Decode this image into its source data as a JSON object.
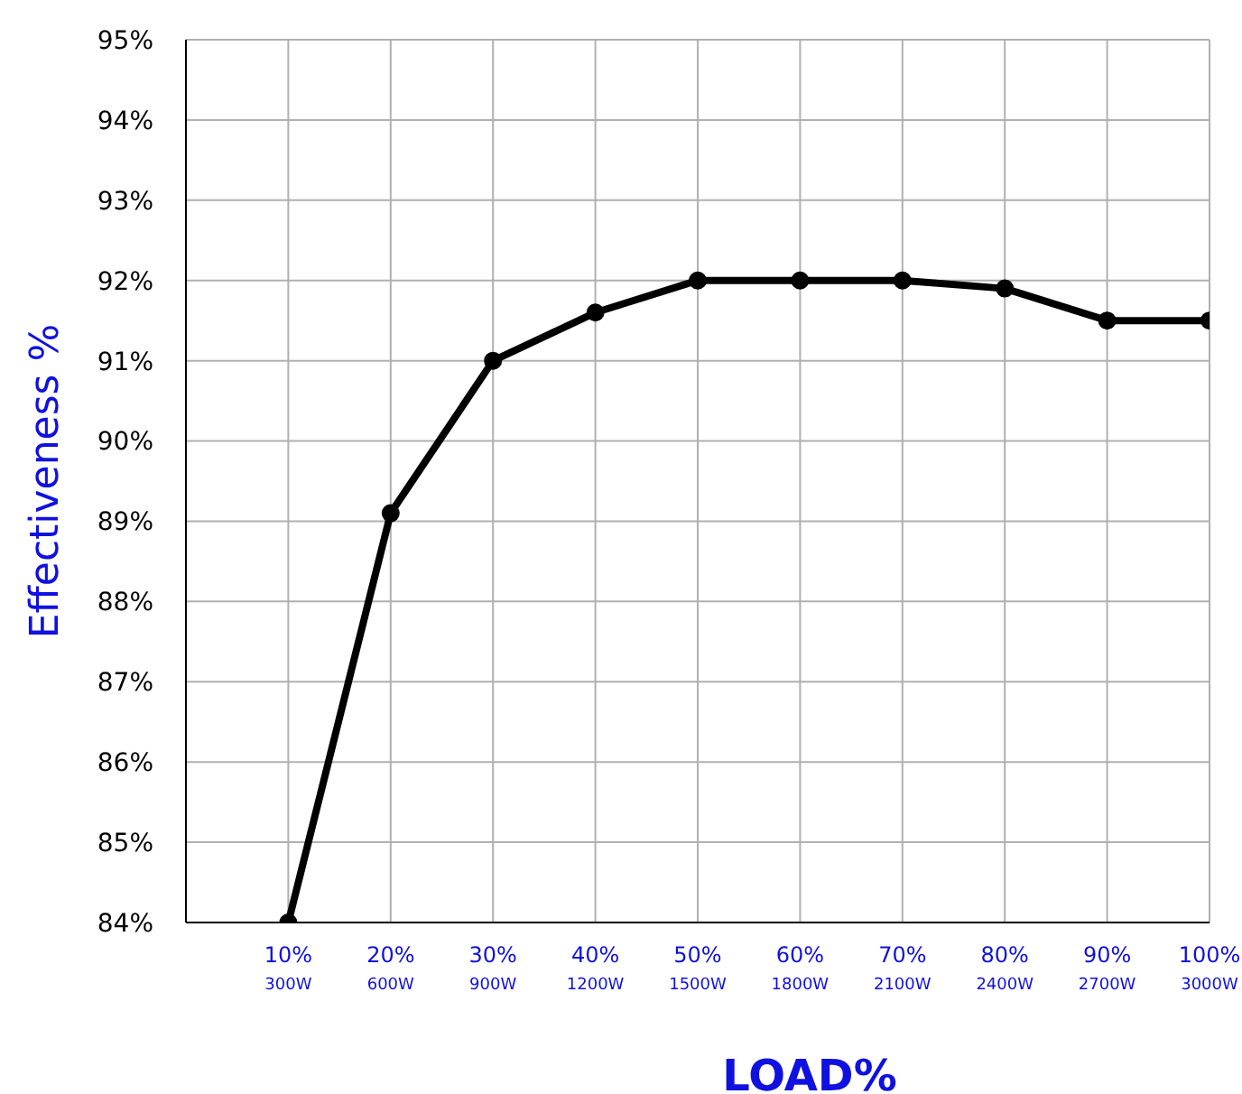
{
  "chart_data": {
    "type": "line",
    "xlabel": "LOAD%",
    "ylabel": "Effectiveness %",
    "categories": [
      "10%\n300W",
      "20%\n600W",
      "30%\n900W",
      "40%\n1200W",
      "50%\n1500W",
      "60%\n1800W",
      "70%\n2100W",
      "80%\n2400W",
      "90%\n2700W",
      "100%\n3000W"
    ],
    "series": [
      {
        "color": "#000000",
        "values": [
          84.0,
          89.1,
          91.0,
          91.6,
          92.0,
          92.0,
          92.0,
          91.9,
          91.5,
          91.5
        ]
      }
    ],
    "ylim": [
      84,
      95
    ],
    "yticks": [
      {
        "value": 84,
        "label": "84%"
      },
      {
        "value": 85,
        "label": "85%"
      },
      {
        "value": 86,
        "label": "86%"
      },
      {
        "value": 87,
        "label": "87%"
      },
      {
        "value": 88,
        "label": "88%"
      },
      {
        "value": 89,
        "label": "89%"
      },
      {
        "value": 90,
        "label": "90%"
      },
      {
        "value": 91,
        "label": "91%"
      },
      {
        "value": 92,
        "label": "92%"
      },
      {
        "value": 93,
        "label": "93%"
      },
      {
        "value": 94,
        "label": "94%"
      },
      {
        "value": 95,
        "label": "95%"
      }
    ],
    "grid": true,
    "marker": "circle",
    "line_style": "solid"
  }
}
